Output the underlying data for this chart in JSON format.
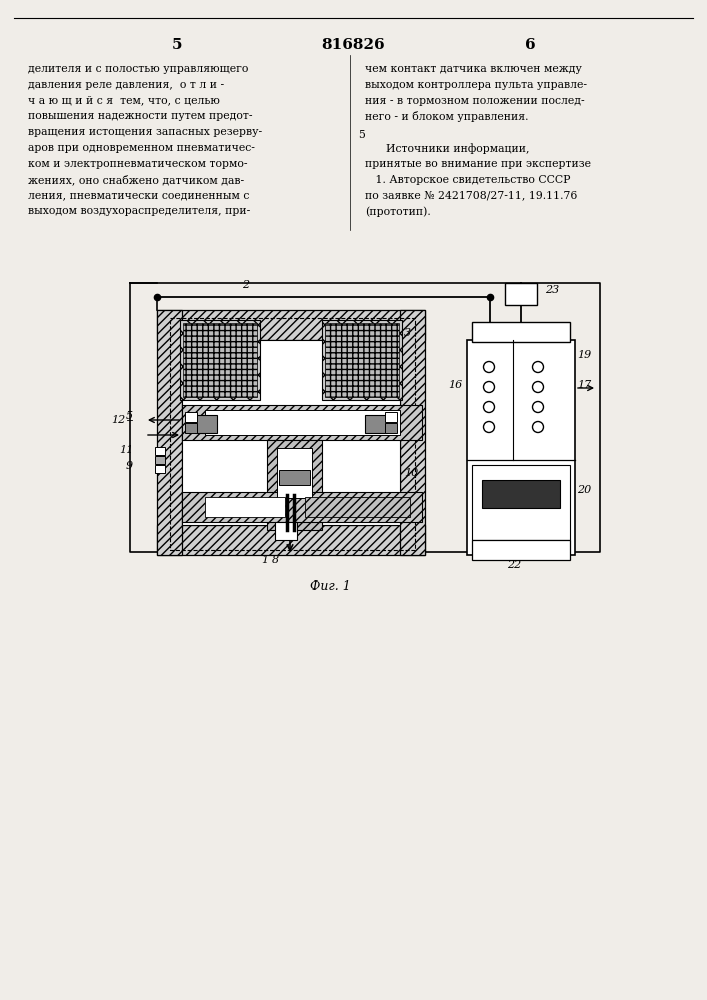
{
  "bg_color": "#f0ede8",
  "page_number_left": "5",
  "page_number_center": "816826",
  "page_number_right": "6",
  "col_left_text": [
    "делителя и с полостью управляющего",
    "давления реле давления,  о т л и -",
    "ч а ю щ и й с я  тем, что, с целью",
    "повышения надежности путем предот-",
    "вращения истощения запасных резерву-",
    "аров при одновременном пневматичес-",
    "ком и электропневматическом тормо-",
    "жениях, оно снабжено датчиком дав-",
    "ления, пневматически соединенным с",
    "выходом воздухораспределителя, при-"
  ],
  "col_right_text": [
    "чем контакт датчика включен между",
    "выходом контроллера пульта управле-",
    "ния - в тормозном положении послед-",
    "него - и блоком управления.",
    "",
    "      Источники информации,",
    "принятые во внимание при экспертизе",
    "   1. Авторское свидетельство СССР",
    "по заявке № 2421708/27-11, 19.11.76",
    "(прототип)."
  ],
  "fig_caption": "Фиг. 1"
}
